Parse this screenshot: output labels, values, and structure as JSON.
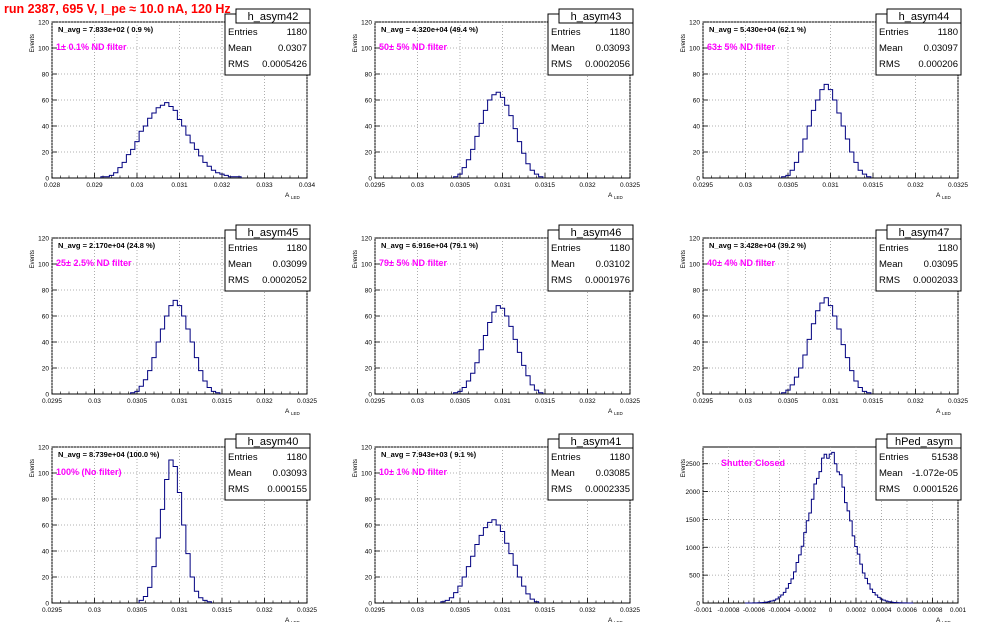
{
  "page": {
    "title": "run 2387,   695 V, I_pe ≈ 10.0 nA, 120 Hz"
  },
  "stats_labels": {
    "entries": "Entries",
    "mean": "Mean",
    "rms": "RMS"
  },
  "colors": {
    "histogram": "#000080",
    "title": "#ff0000",
    "filter_label": "#ff00ff",
    "grid": "#999999"
  },
  "chart_data": [
    {
      "type": "histogram",
      "name": "h_asym42",
      "n_avg": "N_avg = 7.833e+02 ( 0.9 %)",
      "filter": "1± 0.1% ND filter",
      "entries": "1180",
      "mean": "0.0307",
      "rms": "0.0005426",
      "ylabel": "Events",
      "xlabel": "A",
      "xlabel_sub": "LED",
      "xlim": [
        0.028,
        0.034
      ],
      "ylim": [
        0,
        120
      ],
      "xticks": [
        0.028,
        0.029,
        0.03,
        0.031,
        0.032,
        0.033,
        0.034
      ],
      "xtick_labels": [
        "0.028",
        "0.029",
        "0.03",
        "0.031",
        "0.032",
        "0.033",
        "0.034"
      ],
      "yticks": [
        0,
        20,
        40,
        60,
        80,
        100,
        120
      ],
      "bin_width": 0.0001,
      "x": [
        0.0292,
        0.0293,
        0.0294,
        0.0295,
        0.0296,
        0.0297,
        0.0298,
        0.0299,
        0.03,
        0.0301,
        0.0302,
        0.0303,
        0.0304,
        0.0305,
        0.0306,
        0.0307,
        0.0308,
        0.0309,
        0.031,
        0.0311,
        0.0312,
        0.0313,
        0.0314,
        0.0315,
        0.0316,
        0.0317,
        0.0318,
        0.0319,
        0.032,
        0.0321,
        0.0322,
        0.0323,
        0.0324
      ],
      "values": [
        1,
        1,
        2,
        4,
        8,
        12,
        18,
        22,
        28,
        36,
        40,
        46,
        50,
        54,
        56,
        58,
        55,
        52,
        45,
        40,
        33,
        27,
        22,
        17,
        12,
        9,
        6,
        4,
        3,
        2,
        1,
        1,
        1
      ]
    },
    {
      "type": "histogram",
      "name": "h_asym43",
      "n_avg": "N_avg = 4.320e+04 (49.4 %)",
      "filter": "50± 5% ND filter",
      "entries": "1180",
      "mean": "0.03093",
      "rms": "0.0002056",
      "ylabel": "Events",
      "xlabel": "A",
      "xlabel_sub": "LED",
      "xlim": [
        0.0295,
        0.0325
      ],
      "ylim": [
        0,
        120
      ],
      "xticks": [
        0.0295,
        0.03,
        0.0305,
        0.031,
        0.0315,
        0.032,
        0.0325
      ],
      "xtick_labels": [
        "0.0295",
        "0.03",
        "0.0305",
        "0.031",
        "0.0315",
        "0.032",
        "0.0325"
      ],
      "yticks": [
        0,
        20,
        40,
        60,
        80,
        100,
        120
      ],
      "bin_width": 5e-05,
      "x": [
        0.03045,
        0.0305,
        0.03055,
        0.0306,
        0.03065,
        0.0307,
        0.03075,
        0.0308,
        0.03085,
        0.0309,
        0.03095,
        0.031,
        0.03105,
        0.0311,
        0.03115,
        0.0312,
        0.03125,
        0.0313,
        0.03135,
        0.0314,
        0.03145
      ],
      "values": [
        1,
        3,
        8,
        14,
        22,
        32,
        42,
        52,
        60,
        64,
        66,
        62,
        56,
        48,
        38,
        28,
        19,
        11,
        6,
        3,
        1
      ]
    },
    {
      "type": "histogram",
      "name": "h_asym44",
      "n_avg": "N_avg = 5.430e+04 (62.1 %)",
      "filter": "63± 5% ND filter",
      "entries": "1180",
      "mean": "0.03097",
      "rms": "0.000206",
      "ylabel": "Events",
      "xlabel": "A",
      "xlabel_sub": "LED",
      "xlim": [
        0.0295,
        0.0325
      ],
      "ylim": [
        0,
        120
      ],
      "xticks": [
        0.0295,
        0.03,
        0.0305,
        0.031,
        0.0315,
        0.032,
        0.0325
      ],
      "xtick_labels": [
        "0.0295",
        "0.03",
        "0.0305",
        "0.031",
        "0.0315",
        "0.032",
        "0.0325"
      ],
      "yticks": [
        0,
        20,
        40,
        60,
        80,
        100,
        120
      ],
      "bin_width": 5e-05,
      "x": [
        0.03045,
        0.0305,
        0.03055,
        0.0306,
        0.03065,
        0.0307,
        0.03075,
        0.0308,
        0.03085,
        0.0309,
        0.03095,
        0.031,
        0.03105,
        0.0311,
        0.03115,
        0.0312,
        0.03125,
        0.0313,
        0.03135,
        0.0314,
        0.03145
      ],
      "values": [
        1,
        2,
        6,
        12,
        20,
        30,
        40,
        52,
        60,
        68,
        72,
        68,
        60,
        50,
        40,
        30,
        20,
        12,
        6,
        3,
        1
      ]
    },
    {
      "type": "histogram",
      "name": "h_asym45",
      "n_avg": "N_avg = 2.170e+04 (24.8 %)",
      "filter": "25± 2.5% ND filter",
      "entries": "1180",
      "mean": "0.03099",
      "rms": "0.0002052",
      "ylabel": "Events",
      "xlabel": "A",
      "xlabel_sub": "LED",
      "xlim": [
        0.0295,
        0.0325
      ],
      "ylim": [
        0,
        120
      ],
      "xticks": [
        0.0295,
        0.03,
        0.0305,
        0.031,
        0.0315,
        0.032,
        0.0325
      ],
      "xtick_labels": [
        "0.0295",
        "0.03",
        "0.0305",
        "0.031",
        "0.0315",
        "0.032",
        "0.0325"
      ],
      "yticks": [
        0,
        20,
        40,
        60,
        80,
        100,
        120
      ],
      "bin_width": 5e-05,
      "x": [
        0.03045,
        0.0305,
        0.03055,
        0.0306,
        0.03065,
        0.0307,
        0.03075,
        0.0308,
        0.03085,
        0.0309,
        0.03095,
        0.031,
        0.03105,
        0.0311,
        0.03115,
        0.0312,
        0.03125,
        0.0313,
        0.03135,
        0.0314,
        0.03145
      ],
      "values": [
        1,
        2,
        6,
        11,
        18,
        28,
        40,
        50,
        60,
        68,
        72,
        68,
        60,
        50,
        40,
        28,
        18,
        10,
        5,
        2,
        1
      ]
    },
    {
      "type": "histogram",
      "name": "h_asym46",
      "n_avg": "N_avg = 6.916e+04 (79.1 %)",
      "filter": "79± 5% ND filter",
      "entries": "1180",
      "mean": "0.03102",
      "rms": "0.0001976",
      "ylabel": "Events",
      "xlabel": "A",
      "xlabel_sub": "LED",
      "xlim": [
        0.0295,
        0.0325
      ],
      "ylim": [
        0,
        120
      ],
      "xticks": [
        0.0295,
        0.03,
        0.0305,
        0.031,
        0.0315,
        0.032,
        0.0325
      ],
      "xtick_labels": [
        "0.0295",
        "0.03",
        "0.0305",
        "0.031",
        "0.0315",
        "0.032",
        "0.0325"
      ],
      "yticks": [
        0,
        20,
        40,
        60,
        80,
        100,
        120
      ],
      "bin_width": 5e-05,
      "x": [
        0.03045,
        0.0305,
        0.03055,
        0.0306,
        0.03065,
        0.0307,
        0.03075,
        0.0308,
        0.03085,
        0.0309,
        0.03095,
        0.031,
        0.03105,
        0.0311,
        0.03115,
        0.0312,
        0.03125,
        0.0313,
        0.03135,
        0.0314,
        0.03145
      ],
      "values": [
        1,
        2,
        5,
        10,
        16,
        24,
        34,
        45,
        55,
        63,
        68,
        66,
        60,
        52,
        42,
        32,
        22,
        14,
        7,
        3,
        1
      ]
    },
    {
      "type": "histogram",
      "name": "h_asym47",
      "n_avg": "N_avg = 3.428e+04 (39.2 %)",
      "filter": "40± 4% ND filter",
      "entries": "1180",
      "mean": "0.03095",
      "rms": "0.0002033",
      "ylabel": "Events",
      "xlabel": "A",
      "xlabel_sub": "LED",
      "xlim": [
        0.0295,
        0.0325
      ],
      "ylim": [
        0,
        120
      ],
      "xticks": [
        0.0295,
        0.03,
        0.0305,
        0.031,
        0.0315,
        0.032,
        0.0325
      ],
      "xtick_labels": [
        "0.0295",
        "0.03",
        "0.0305",
        "0.031",
        "0.0315",
        "0.032",
        "0.0325"
      ],
      "yticks": [
        0,
        20,
        40,
        60,
        80,
        100,
        120
      ],
      "bin_width": 5e-05,
      "x": [
        0.03045,
        0.0305,
        0.03055,
        0.0306,
        0.03065,
        0.0307,
        0.03075,
        0.0308,
        0.03085,
        0.0309,
        0.03095,
        0.031,
        0.03105,
        0.0311,
        0.03115,
        0.0312,
        0.03125,
        0.0313,
        0.03135,
        0.0314,
        0.03145
      ],
      "values": [
        1,
        3,
        7,
        13,
        20,
        30,
        42,
        54,
        64,
        70,
        74,
        68,
        60,
        50,
        38,
        28,
        18,
        10,
        5,
        2,
        1
      ]
    },
    {
      "type": "histogram",
      "name": "h_asym40",
      "n_avg": "N_avg = 8.739e+04 (100.0 %)",
      "filter": "100% (No filter)",
      "entries": "1180",
      "mean": "0.03093",
      "rms": "0.000155",
      "ylabel": "Events",
      "xlabel": "A",
      "xlabel_sub": "LED",
      "xlim": [
        0.0295,
        0.0325
      ],
      "ylim": [
        0,
        120
      ],
      "xticks": [
        0.0295,
        0.03,
        0.0305,
        0.031,
        0.0315,
        0.032,
        0.0325
      ],
      "xtick_labels": [
        "0.0295",
        "0.03",
        "0.0305",
        "0.031",
        "0.0315",
        "0.032",
        "0.0325"
      ],
      "yticks": [
        0,
        20,
        40,
        60,
        80,
        100,
        120
      ],
      "bin_width": 5e-05,
      "x": [
        0.03055,
        0.0306,
        0.03065,
        0.0307,
        0.03075,
        0.0308,
        0.03085,
        0.0309,
        0.03095,
        0.031,
        0.03105,
        0.0311,
        0.03115,
        0.0312,
        0.03125,
        0.0313,
        0.03135
      ],
      "values": [
        2,
        5,
        12,
        28,
        50,
        72,
        95,
        110,
        105,
        85,
        60,
        38,
        20,
        9,
        4,
        2,
        1
      ]
    },
    {
      "type": "histogram",
      "name": "h_asym41",
      "n_avg": "N_avg = 7.943e+03 ( 9.1 %)",
      "filter": "10± 1% ND filter",
      "entries": "1180",
      "mean": "0.03085",
      "rms": "0.0002335",
      "ylabel": "Events",
      "xlabel": "A",
      "xlabel_sub": "LED",
      "xlim": [
        0.0295,
        0.0325
      ],
      "ylim": [
        0,
        120
      ],
      "xticks": [
        0.0295,
        0.03,
        0.0305,
        0.031,
        0.0315,
        0.032,
        0.0325
      ],
      "xtick_labels": [
        "0.0295",
        "0.03",
        "0.0305",
        "0.031",
        "0.0315",
        "0.032",
        "0.0325"
      ],
      "yticks": [
        0,
        20,
        40,
        60,
        80,
        100,
        120
      ],
      "bin_width": 5e-05,
      "x": [
        0.0303,
        0.03035,
        0.0304,
        0.03045,
        0.0305,
        0.03055,
        0.0306,
        0.03065,
        0.0307,
        0.03075,
        0.0308,
        0.03085,
        0.0309,
        0.03095,
        0.031,
        0.03105,
        0.0311,
        0.03115,
        0.0312,
        0.03125,
        0.0313,
        0.03135,
        0.0314
      ],
      "values": [
        1,
        2,
        4,
        8,
        13,
        20,
        28,
        36,
        45,
        52,
        58,
        62,
        64,
        60,
        55,
        46,
        38,
        29,
        20,
        13,
        7,
        3,
        1
      ]
    },
    {
      "type": "histogram",
      "name": "hPed_asym",
      "n_avg": "",
      "filter": "Shutter Closed",
      "entries": "51538",
      "mean": "-1.072e-05",
      "rms": "0.0001526",
      "ylabel": "Events",
      "xlabel": "A",
      "xlabel_sub": "LED",
      "xlim": [
        -0.001,
        0.001
      ],
      "ylim": [
        0,
        2800
      ],
      "xticks": [
        -0.001,
        -0.0008,
        -0.0006,
        -0.0004,
        -0.0002,
        0,
        0.0002,
        0.0004,
        0.0006,
        0.0008,
        0.001
      ],
      "xtick_labels": [
        "-0.001",
        "-0.0008",
        "-0.0006",
        "-0.0004",
        "-0.0002",
        "0",
        "0.0002",
        "0.0004",
        "0.0006",
        "0.0008",
        "0.001"
      ],
      "yticks": [
        0,
        500,
        1000,
        1500,
        2000,
        2500
      ],
      "bin_width": 2e-05,
      "gauss": {
        "mean": -1.072e-05,
        "sigma": 0.0001526,
        "peak": 2680,
        "from": -0.00066,
        "to": 0.00064
      }
    }
  ]
}
